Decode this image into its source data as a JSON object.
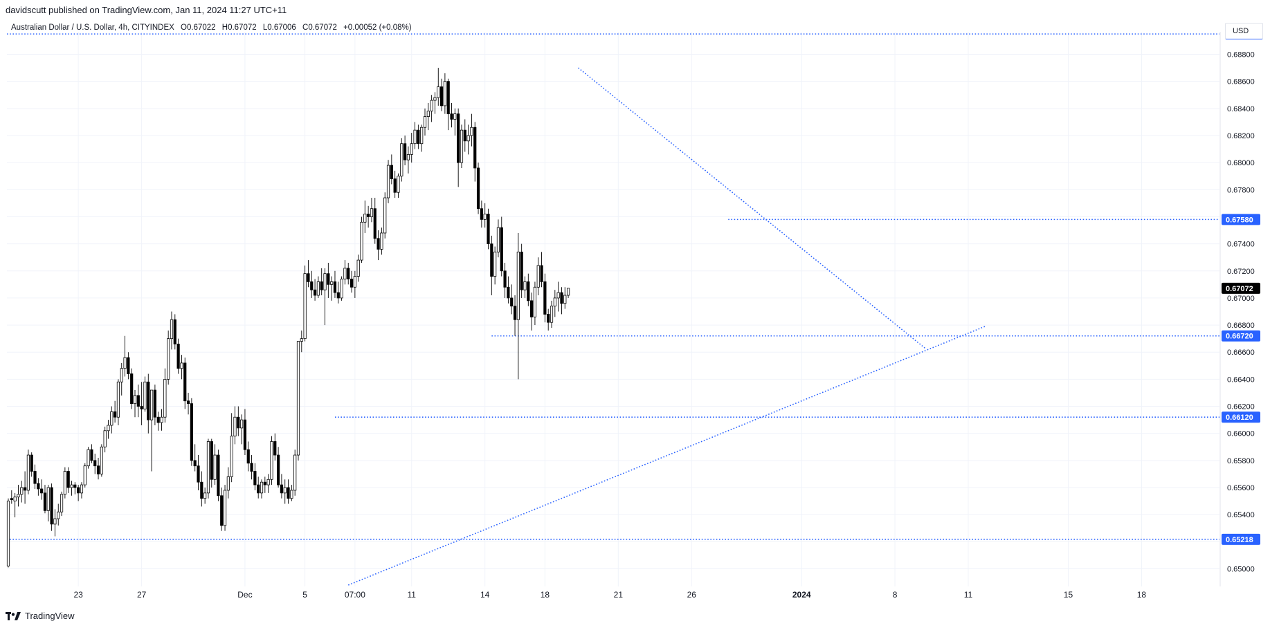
{
  "publish_line": "davidscutt published on TradingView.com, Jan 11, 2024 11:27 UTC+11",
  "symbol": {
    "name": "Australian Dollar / U.S. Dollar, 4h, CITYINDEX",
    "open": "O0.67022",
    "high": "H0.67072",
    "low": "L0.67006",
    "close": "C0.67072",
    "change": "+0.00052 (+0.08%)"
  },
  "currency_label": "USD",
  "footer_brand": "TradingView",
  "colors": {
    "bull_fill": "#ffffff",
    "bear_fill": "#000000",
    "candle_border": "#000000",
    "line_blue": "#2962ff",
    "level_label_bg": "#2962ff",
    "last_price_bg": "#000000",
    "grid": "#f0f3fa"
  },
  "chart_data": {
    "type": "candlestick",
    "timeframe": "4h",
    "ylim": [
      0.649,
      0.6898
    ],
    "y_ticks": [
      "0.68800",
      "0.68600",
      "0.68400",
      "0.68200",
      "0.68000",
      "0.67800",
      "0.67600",
      "0.67400",
      "0.67200",
      "0.67000",
      "0.66800",
      "0.66600",
      "0.66400",
      "0.66200",
      "0.66000",
      "0.65800",
      "0.65600",
      "0.65400",
      "0.65200",
      "0.65000"
    ],
    "x_ticks": [
      {
        "label": "23",
        "bar": 21
      },
      {
        "label": "27",
        "bar": 40
      },
      {
        "label": "Dec",
        "bar": 71
      },
      {
        "label": "5",
        "bar": 89
      },
      {
        "label": "07:00",
        "bar": 104
      },
      {
        "label": "11",
        "bar": 121
      },
      {
        "label": "14",
        "bar": 143
      },
      {
        "label": "18",
        "bar": 161
      },
      {
        "label": "21",
        "bar": 183
      },
      {
        "label": "26",
        "bar": 205
      },
      {
        "label": "2024",
        "bar": 238
      },
      {
        "label": "8",
        "bar": 266
      },
      {
        "label": "11",
        "bar": 288
      },
      {
        "label": "15",
        "bar": 318
      },
      {
        "label": "18",
        "bar": 340
      }
    ],
    "candles": [
      [
        0.6502,
        0.6552,
        0.6501,
        0.655
      ],
      [
        0.6552,
        0.6558,
        0.6548,
        0.6551
      ],
      [
        0.655,
        0.6556,
        0.6538,
        0.6553
      ],
      [
        0.6553,
        0.6562,
        0.6546,
        0.6555
      ],
      [
        0.6555,
        0.6565,
        0.6549,
        0.656
      ],
      [
        0.656,
        0.6572,
        0.6548,
        0.6558
      ],
      [
        0.6558,
        0.6588,
        0.6555,
        0.6584
      ],
      [
        0.6584,
        0.6586,
        0.6568,
        0.6572
      ],
      [
        0.6572,
        0.6577,
        0.6559,
        0.6563
      ],
      [
        0.6563,
        0.6567,
        0.6554,
        0.6559
      ],
      [
        0.6559,
        0.6566,
        0.6551,
        0.6556
      ],
      [
        0.6556,
        0.6562,
        0.6541,
        0.6543
      ],
      [
        0.6543,
        0.6562,
        0.6535,
        0.656
      ],
      [
        0.656,
        0.6563,
        0.6528,
        0.6533
      ],
      [
        0.6533,
        0.6544,
        0.6524,
        0.6537
      ],
      [
        0.6537,
        0.6548,
        0.6532,
        0.6542
      ],
      [
        0.6542,
        0.6557,
        0.6539,
        0.6555
      ],
      [
        0.6555,
        0.6575,
        0.6552,
        0.6572
      ],
      [
        0.6572,
        0.6575,
        0.6556,
        0.656
      ],
      [
        0.656,
        0.6565,
        0.6554,
        0.6562
      ],
      [
        0.6562,
        0.6564,
        0.6555,
        0.656
      ],
      [
        0.656,
        0.6562,
        0.655,
        0.6556
      ],
      [
        0.6556,
        0.6564,
        0.6552,
        0.6562
      ],
      [
        0.6562,
        0.6578,
        0.656,
        0.6576
      ],
      [
        0.6576,
        0.659,
        0.6574,
        0.6588
      ],
      [
        0.6588,
        0.6592,
        0.6578,
        0.658
      ],
      [
        0.658,
        0.6585,
        0.657,
        0.6576
      ],
      [
        0.6576,
        0.6582,
        0.6566,
        0.657
      ],
      [
        0.657,
        0.6592,
        0.6568,
        0.659
      ],
      [
        0.659,
        0.6605,
        0.6586,
        0.6602
      ],
      [
        0.6602,
        0.661,
        0.6596,
        0.6606
      ],
      [
        0.6606,
        0.662,
        0.66,
        0.6616
      ],
      [
        0.6616,
        0.6624,
        0.6608,
        0.6612
      ],
      [
        0.6612,
        0.664,
        0.6606,
        0.6638
      ],
      [
        0.6638,
        0.6652,
        0.6628,
        0.6648
      ],
      [
        0.6648,
        0.6672,
        0.6642,
        0.6656
      ],
      [
        0.6656,
        0.666,
        0.664,
        0.6644
      ],
      [
        0.6644,
        0.6648,
        0.6618,
        0.6622
      ],
      [
        0.6622,
        0.6632,
        0.6612,
        0.6628
      ],
      [
        0.6628,
        0.6636,
        0.6612,
        0.662
      ],
      [
        0.662,
        0.6638,
        0.6606,
        0.6618
      ],
      [
        0.6618,
        0.6642,
        0.6616,
        0.6638
      ],
      [
        0.6638,
        0.6644,
        0.66,
        0.661
      ],
      [
        0.661,
        0.6632,
        0.6572,
        0.6632
      ],
      [
        0.6632,
        0.6636,
        0.6606,
        0.6612
      ],
      [
        0.6612,
        0.6616,
        0.6602,
        0.6608
      ],
      [
        0.6608,
        0.6618,
        0.6602,
        0.6612
      ],
      [
        0.6612,
        0.6648,
        0.6608,
        0.664
      ],
      [
        0.664,
        0.6676,
        0.6636,
        0.667
      ],
      [
        0.667,
        0.669,
        0.6662,
        0.6684
      ],
      [
        0.6684,
        0.6688,
        0.6662,
        0.6666
      ],
      [
        0.6666,
        0.667,
        0.6644,
        0.6648
      ],
      [
        0.6648,
        0.6658,
        0.664,
        0.6652
      ],
      [
        0.6652,
        0.6656,
        0.6618,
        0.6624
      ],
      [
        0.6624,
        0.663,
        0.6614,
        0.6622
      ],
      [
        0.6622,
        0.6626,
        0.6576,
        0.658
      ],
      [
        0.658,
        0.6592,
        0.6572,
        0.6576
      ],
      [
        0.6576,
        0.6584,
        0.6558,
        0.6564
      ],
      [
        0.6564,
        0.6572,
        0.6546,
        0.6552
      ],
      [
        0.6552,
        0.656,
        0.6548,
        0.6556
      ],
      [
        0.6556,
        0.6596,
        0.6552,
        0.6594
      ],
      [
        0.6594,
        0.6596,
        0.656,
        0.6566
      ],
      [
        0.6566,
        0.6592,
        0.6562,
        0.6584
      ],
      [
        0.6584,
        0.6588,
        0.655,
        0.6554
      ],
      [
        0.6554,
        0.656,
        0.6528,
        0.6532
      ],
      [
        0.6532,
        0.6562,
        0.6528,
        0.6558
      ],
      [
        0.6558,
        0.6575,
        0.6552,
        0.6568
      ],
      [
        0.6568,
        0.6615,
        0.6564,
        0.6598
      ],
      [
        0.6598,
        0.662,
        0.6592,
        0.6612
      ],
      [
        0.6612,
        0.662,
        0.6598,
        0.6604
      ],
      [
        0.6604,
        0.6614,
        0.6592,
        0.661
      ],
      [
        0.661,
        0.6618,
        0.6584,
        0.6588
      ],
      [
        0.6588,
        0.6594,
        0.6572,
        0.6578
      ],
      [
        0.6578,
        0.6584,
        0.6566,
        0.6572
      ],
      [
        0.6572,
        0.6578,
        0.6558,
        0.6562
      ],
      [
        0.6562,
        0.6568,
        0.6552,
        0.6556
      ],
      [
        0.6556,
        0.6566,
        0.6552,
        0.6564
      ],
      [
        0.6564,
        0.6568,
        0.6556,
        0.6562
      ],
      [
        0.6562,
        0.657,
        0.6556,
        0.6566
      ],
      [
        0.6566,
        0.6598,
        0.6562,
        0.6594
      ],
      [
        0.6594,
        0.66,
        0.658,
        0.6584
      ],
      [
        0.6584,
        0.659,
        0.656,
        0.6562
      ],
      [
        0.6562,
        0.657,
        0.6552,
        0.6556
      ],
      [
        0.6556,
        0.6566,
        0.6548,
        0.656
      ],
      [
        0.656,
        0.6566,
        0.6548,
        0.6552
      ],
      [
        0.6552,
        0.6562,
        0.655,
        0.6558
      ],
      [
        0.6558,
        0.6588,
        0.6554,
        0.6584
      ],
      [
        0.6584,
        0.6668,
        0.658,
        0.6668
      ],
      [
        0.6668,
        0.6676,
        0.666,
        0.667
      ],
      [
        0.667,
        0.6724,
        0.6668,
        0.6718
      ],
      [
        0.6718,
        0.6728,
        0.6708,
        0.6712
      ],
      [
        0.6712,
        0.672,
        0.67,
        0.6706
      ],
      [
        0.6706,
        0.6714,
        0.6698,
        0.6702
      ],
      [
        0.6702,
        0.6716,
        0.67,
        0.6712
      ],
      [
        0.6712,
        0.6722,
        0.6702,
        0.6706
      ],
      [
        0.6706,
        0.6722,
        0.668,
        0.6718
      ],
      [
        0.6718,
        0.6726,
        0.67,
        0.671
      ],
      [
        0.671,
        0.6716,
        0.6698,
        0.6712
      ],
      [
        0.6712,
        0.672,
        0.67,
        0.6704
      ],
      [
        0.6704,
        0.6712,
        0.6696,
        0.67
      ],
      [
        0.67,
        0.6716,
        0.6698,
        0.6714
      ],
      [
        0.6714,
        0.6728,
        0.671,
        0.6722
      ],
      [
        0.6722,
        0.6726,
        0.671,
        0.6714
      ],
      [
        0.6714,
        0.672,
        0.6704,
        0.6708
      ],
      [
        0.6708,
        0.672,
        0.67,
        0.6716
      ],
      [
        0.6716,
        0.6732,
        0.6712,
        0.6728
      ],
      [
        0.6728,
        0.676,
        0.6726,
        0.6756
      ],
      [
        0.6756,
        0.6772,
        0.6748,
        0.6762
      ],
      [
        0.6762,
        0.6768,
        0.6752,
        0.676
      ],
      [
        0.676,
        0.6774,
        0.6756,
        0.6766
      ],
      [
        0.6766,
        0.6774,
        0.674,
        0.6744
      ],
      [
        0.6744,
        0.675,
        0.6728,
        0.6736
      ],
      [
        0.6736,
        0.6752,
        0.6732,
        0.6748
      ],
      [
        0.6748,
        0.6778,
        0.6744,
        0.6774
      ],
      [
        0.6774,
        0.6802,
        0.677,
        0.6798
      ],
      [
        0.6798,
        0.6806,
        0.6784,
        0.6788
      ],
      [
        0.6788,
        0.6794,
        0.6774,
        0.6778
      ],
      [
        0.6778,
        0.6792,
        0.6774,
        0.679
      ],
      [
        0.679,
        0.6818,
        0.6786,
        0.6814
      ],
      [
        0.6814,
        0.682,
        0.6798,
        0.6802
      ],
      [
        0.6802,
        0.6812,
        0.6792,
        0.6806
      ],
      [
        0.6806,
        0.6822,
        0.68,
        0.6814
      ],
      [
        0.6814,
        0.683,
        0.681,
        0.6824
      ],
      [
        0.6824,
        0.6828,
        0.681,
        0.6814
      ],
      [
        0.6814,
        0.6828,
        0.6808,
        0.6826
      ],
      [
        0.6826,
        0.684,
        0.682,
        0.6834
      ],
      [
        0.6834,
        0.6844,
        0.6824,
        0.6838
      ],
      [
        0.6838,
        0.685,
        0.683,
        0.6846
      ],
      [
        0.6846,
        0.6852,
        0.6836,
        0.6848
      ],
      [
        0.6848,
        0.687,
        0.6842,
        0.6856
      ],
      [
        0.6856,
        0.6862,
        0.6838,
        0.6842
      ],
      [
        0.6842,
        0.6866,
        0.6836,
        0.686
      ],
      [
        0.686,
        0.6862,
        0.6824,
        0.6836
      ],
      [
        0.6836,
        0.6844,
        0.6826,
        0.6832
      ],
      [
        0.6832,
        0.684,
        0.682,
        0.6836
      ],
      [
        0.6836,
        0.684,
        0.6782,
        0.68
      ],
      [
        0.68,
        0.6828,
        0.6796,
        0.6824
      ],
      [
        0.6824,
        0.6832,
        0.6808,
        0.6816
      ],
      [
        0.6816,
        0.6828,
        0.6806,
        0.682
      ],
      [
        0.682,
        0.6836,
        0.6812,
        0.6826
      ],
      [
        0.6826,
        0.683,
        0.6786,
        0.6796
      ],
      [
        0.6796,
        0.68,
        0.6762,
        0.6766
      ],
      [
        0.6766,
        0.6772,
        0.6752,
        0.6758
      ],
      [
        0.6758,
        0.677,
        0.6752,
        0.6762
      ],
      [
        0.6762,
        0.6766,
        0.6736,
        0.674
      ],
      [
        0.674,
        0.6746,
        0.6702,
        0.6716
      ],
      [
        0.6716,
        0.6738,
        0.671,
        0.6734
      ],
      [
        0.6734,
        0.6758,
        0.673,
        0.6752
      ],
      [
        0.6752,
        0.676,
        0.6716,
        0.672
      ],
      [
        0.672,
        0.6726,
        0.67,
        0.6708
      ],
      [
        0.6708,
        0.6716,
        0.6696,
        0.67
      ],
      [
        0.67,
        0.671,
        0.6688,
        0.6694
      ],
      [
        0.6694,
        0.6702,
        0.6672,
        0.6684
      ],
      [
        0.6684,
        0.6748,
        0.664,
        0.6734
      ],
      [
        0.6734,
        0.674,
        0.67,
        0.6706
      ],
      [
        0.6706,
        0.6716,
        0.67,
        0.6712
      ],
      [
        0.6712,
        0.6718,
        0.6694,
        0.6698
      ],
      [
        0.6698,
        0.6704,
        0.6676,
        0.6686
      ],
      [
        0.6686,
        0.6712,
        0.668,
        0.6708
      ],
      [
        0.6708,
        0.673,
        0.6702,
        0.6724
      ],
      [
        0.6724,
        0.6734,
        0.6708,
        0.6712
      ],
      [
        0.6712,
        0.6718,
        0.6682,
        0.6688
      ],
      [
        0.6688,
        0.6692,
        0.6676,
        0.6682
      ],
      [
        0.6682,
        0.6698,
        0.6678,
        0.6694
      ],
      [
        0.6694,
        0.6706,
        0.6686,
        0.67
      ],
      [
        0.67,
        0.6712,
        0.669,
        0.6704
      ],
      [
        0.6704,
        0.6708,
        0.6688,
        0.6696
      ],
      [
        0.6696,
        0.6708,
        0.6692,
        0.6702
      ],
      [
        0.6702,
        0.6707,
        0.67,
        0.67072
      ]
    ],
    "horizontal_levels": [
      {
        "price": 0.6895,
        "label": null
      },
      {
        "price": 0.6758,
        "label": "0.67580"
      },
      {
        "price": 0.6672,
        "label": "0.66720"
      },
      {
        "price": 0.6612,
        "label": "0.66120"
      },
      {
        "price": 0.65218,
        "label": "0.65218"
      }
    ],
    "trendlines": [
      {
        "from": {
          "bar": 171,
          "price": 0.687
        },
        "to": {
          "bar": 275,
          "price": 0.6663
        }
      },
      {
        "from": {
          "bar": 102,
          "price": 0.6488
        },
        "to": {
          "bar": 293,
          "price": 0.6679
        }
      }
    ],
    "last_price_label": "0.67072",
    "last_price": 0.67072
  }
}
